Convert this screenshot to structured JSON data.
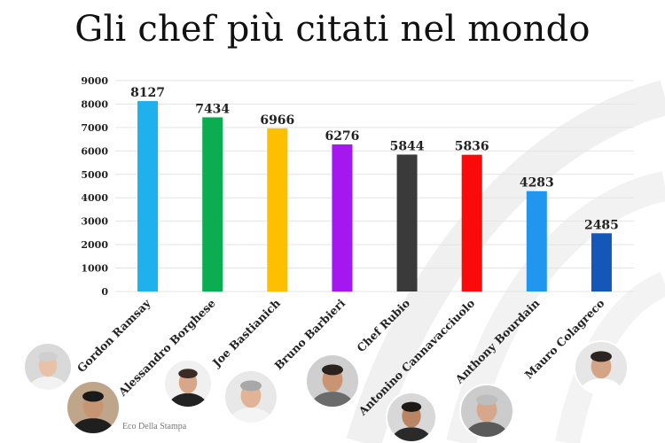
{
  "title": "Gli chef più citati nel mondo",
  "credit": "Eco Della Stampa",
  "chart_data": {
    "type": "bar",
    "title": "Gli chef più citati nel mondo",
    "xlabel": "",
    "ylabel": "",
    "ylim": [
      0,
      9000
    ],
    "yticks": [
      0,
      1000,
      2000,
      3000,
      4000,
      5000,
      6000,
      7000,
      8000,
      9000
    ],
    "grid": true,
    "categories": [
      "Gordon Ramsay",
      "Alessandro Borghese",
      "Joe Bastianich",
      "Bruno Barbieri",
      "Chef Rubio",
      "Antonino Cannavacciuolo",
      "Anthony Bourdain",
      "Mauro Colagreco"
    ],
    "values": [
      8127,
      7434,
      6966,
      6276,
      5844,
      5836,
      4283,
      2485
    ],
    "colors": [
      "#1fb0ee",
      "#0aad4f",
      "#fdbf00",
      "#a417ee",
      "#3a3a3a",
      "#fa0a0a",
      "#2196ee",
      "#1557b8"
    ]
  }
}
